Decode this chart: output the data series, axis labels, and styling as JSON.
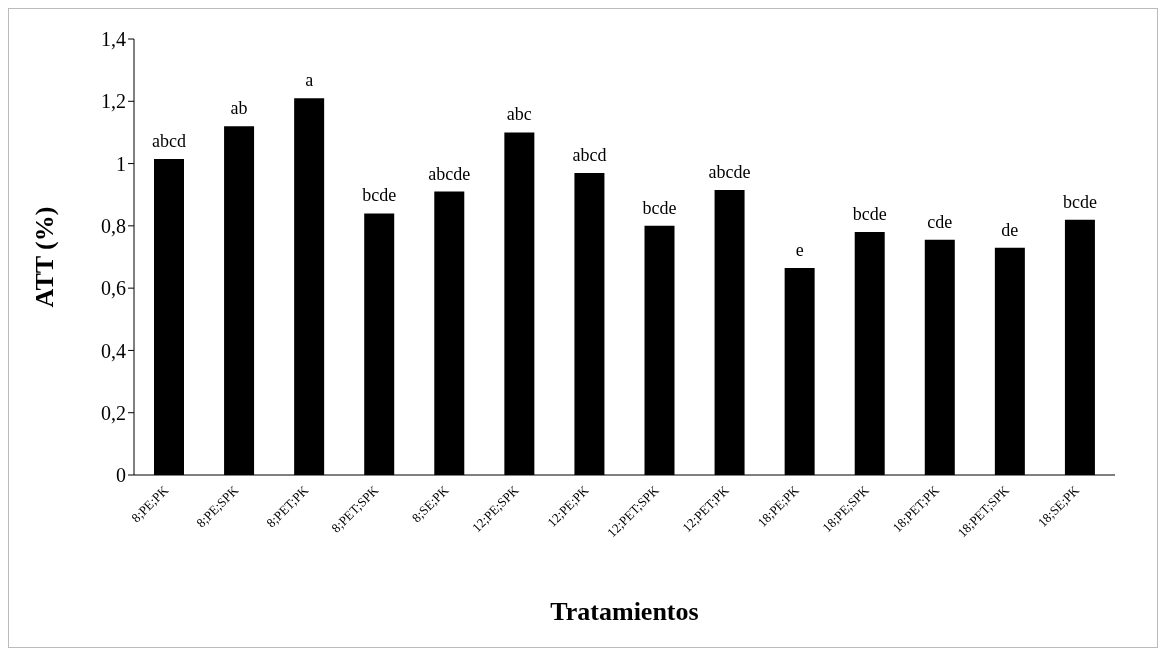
{
  "chart_data": {
    "type": "bar",
    "xlabel": "Tratamientos",
    "ylabel": "ATT (%)",
    "categories": [
      "8;PE;PK",
      "8;PE;SPK",
      "8;PET;PK",
      "8;PET;SPK",
      "8;SE;PK",
      "12;PE;SPK",
      "12;PE;PK",
      "12;PET;SPK",
      "12;PET;PK",
      "18;PE;PK",
      "18;PE;SPK",
      "18;PET;PK",
      "18;PET;SPK",
      "18;SE;PK"
    ],
    "values": [
      1.015,
      1.12,
      1.21,
      0.84,
      0.91,
      1.1,
      0.97,
      0.8,
      0.915,
      0.665,
      0.78,
      0.755,
      0.73,
      0.82
    ],
    "value_labels": [
      "abcd",
      "ab",
      "a",
      "bcde",
      "abcde",
      "abc",
      "abcd",
      "bcde",
      "abcde",
      "e",
      "bcde",
      "cde",
      "de",
      "bcde"
    ],
    "color": "#000000",
    "ylim": [
      0,
      1.4
    ],
    "yticks": [
      {
        "value": 0,
        "label": "0"
      },
      {
        "value": 0.2,
        "label": "0,2"
      },
      {
        "value": 0.4,
        "label": "0,4"
      },
      {
        "value": 0.6,
        "label": "0,6"
      },
      {
        "value": 0.8,
        "label": "0,8"
      },
      {
        "value": 1,
        "label": "1"
      },
      {
        "value": 1.2,
        "label": "1,2"
      },
      {
        "value": 1.4,
        "label": "1,4"
      }
    ],
    "grid": false,
    "legend": false
  }
}
